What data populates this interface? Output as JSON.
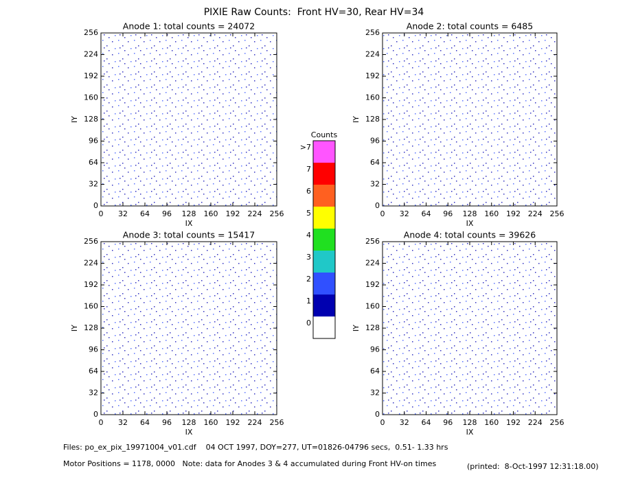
{
  "title": "PIXIE Raw Counts:  Front HV=30, Rear HV=34",
  "chart_data": [
    {
      "type": "heatmap",
      "title": "Anode 1: total counts = 24072",
      "xlabel": "IX",
      "ylabel": "IY",
      "xlim": [
        0,
        256
      ],
      "ylim": [
        0,
        256
      ],
      "xticks": [
        0,
        32,
        64,
        96,
        128,
        160,
        192,
        224,
        256
      ],
      "yticks": [
        0,
        32,
        64,
        96,
        128,
        160,
        192,
        224,
        256
      ]
    },
    {
      "type": "heatmap",
      "title": "Anode 2: total counts = 6485",
      "xlabel": "IX",
      "ylabel": "IY",
      "xlim": [
        0,
        256
      ],
      "ylim": [
        0,
        256
      ],
      "xticks": [
        0,
        32,
        64,
        96,
        128,
        160,
        192,
        224,
        256
      ],
      "yticks": [
        0,
        32,
        64,
        96,
        128,
        160,
        192,
        224,
        256
      ]
    },
    {
      "type": "heatmap",
      "title": "Anode 3: total counts = 15417",
      "xlabel": "IX",
      "ylabel": "IY",
      "xlim": [
        0,
        256
      ],
      "ylim": [
        0,
        256
      ],
      "xticks": [
        0,
        32,
        64,
        96,
        128,
        160,
        192,
        224,
        256
      ],
      "yticks": [
        0,
        32,
        64,
        96,
        128,
        160,
        192,
        224,
        256
      ]
    },
    {
      "type": "heatmap",
      "title": "Anode 4: total counts = 39626",
      "xlabel": "IX",
      "ylabel": "IY",
      "xlim": [
        0,
        256
      ],
      "ylim": [
        0,
        256
      ],
      "xticks": [
        0,
        32,
        64,
        96,
        128,
        160,
        192,
        224,
        256
      ],
      "yticks": [
        0,
        32,
        64,
        96,
        128,
        160,
        192,
        224,
        256
      ]
    }
  ],
  "colorbar": {
    "title": "Counts",
    "levels": [
      0,
      1,
      2,
      3,
      4,
      5,
      6,
      7,
      {
        "value": 8,
        "label": ">7"
      }
    ],
    "colors": [
      "#ffffff",
      "#0000b0",
      "#3050ff",
      "#20c8c8",
      "#20e020",
      "#ffff00",
      "#ff6020",
      "#ff0000",
      "#ff55ff"
    ]
  },
  "footer": {
    "files": "Files: po_ex_pix_19971004_v01.cdf    04 OCT 1997, DOY=277, UT=01826-04796 secs,  0.51- 1.33 hrs",
    "motor": "Motor Positions = 1178, 0000   Note: data for Anodes 3 & 4 accumulated during Front HV-on times",
    "printed": "(printed:  8-Oct-1997 12:31:18.00)"
  }
}
